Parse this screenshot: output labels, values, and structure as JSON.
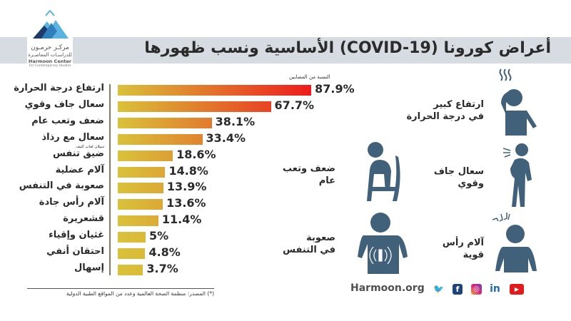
{
  "header": {
    "title": "أعراض كورونا (COVID-19) الأساسية ونسب ظهورها"
  },
  "logo": {
    "ar_name": "مركـز حرمـون",
    "ar_sub": "للدراسـات المعاصـرة",
    "en_name": "Harmoon Center",
    "en_sub": "For Contemporary Studies"
  },
  "chart_data": {
    "type": "bar",
    "orientation": "horizontal",
    "title": "أعراض كورونا (COVID-19) الأساسية ونسب ظهورها",
    "value_header": "النسبة من المصابين",
    "categories": [
      "ارتفاع درجة الحرارة",
      "سعال جاف وقوي",
      "ضعف وتعب عام",
      "سعال مع رذاذ",
      "ضيق تنفس",
      "آلام عضلية",
      "صعوبة في التنفس",
      "آلام رأس جادة",
      "قشعريرة",
      "غثيان وإقياء",
      "احتقان أنفي",
      "إسهال"
    ],
    "subnotes": {
      "3": "سيلان لعاب كثيف"
    },
    "values": [
      87.9,
      67.7,
      38.1,
      33.4,
      18.6,
      14.8,
      13.9,
      13.6,
      11.4,
      5,
      4.8,
      3.7
    ],
    "labels": [
      "87.9%",
      "67.7%",
      "38.1%",
      "33.4%",
      "18.6%",
      "14.8%",
      "13.9%",
      "13.6%",
      "11.4%",
      "5%",
      "4.8%",
      "3.7%"
    ],
    "unit": "%",
    "colors": {
      "low": "#d9c23a",
      "high": "#ee1c1c"
    }
  },
  "source": "(*) المصدر: منظمة الصحة العالمية وعدد من المواقع الطبية الدولية",
  "symptoms": [
    {
      "icon": "fever-person-icon",
      "line1": "ارتفاع كبير",
      "line2": "في درجة الحرارة"
    },
    {
      "icon": "fatigue-person-icon",
      "line1": "ضعف وتعب",
      "line2": "عام"
    },
    {
      "icon": "cough-person-icon",
      "line1": "سعال جاف",
      "line2": "وقوي"
    },
    {
      "icon": "lungs-person-icon",
      "line1": "صعوبة",
      "line2": "في التنفس"
    },
    {
      "icon": "headache-person-icon",
      "line1": "آلام رأس",
      "line2": "قوية"
    }
  ],
  "footer": {
    "site": "Harmoon.org",
    "social": [
      "twitter",
      "facebook",
      "instagram",
      "linkedin",
      "youtube"
    ],
    "fb": "f",
    "in": "in",
    "yt": "▶",
    "ig": "◎",
    "tw": "🐦"
  },
  "icon_color": "#41607a"
}
